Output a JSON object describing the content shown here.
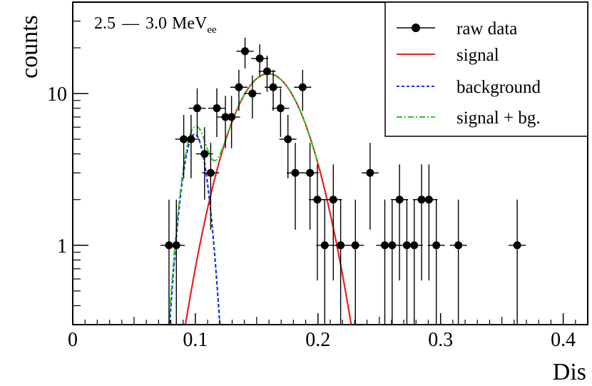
{
  "chart_data": {
    "type": "scatter",
    "energy_range": {
      "low": "2.5",
      "high": "3.0",
      "unit": "MeV",
      "unit_subscript": "ee"
    },
    "xlabel": "Dis",
    "ylabel": "counts",
    "xlim": [
      0,
      0.42
    ],
    "ylim": [
      0.3,
      40
    ],
    "y_scale": "log",
    "x_ticks": [
      0,
      0.1,
      0.2,
      0.3,
      0.4
    ],
    "x_tick_labels": [
      "0",
      "0.1",
      "0.2",
      "0.3",
      "0.4"
    ],
    "y_ticks": [
      1,
      10
    ],
    "y_tick_labels": [
      "1",
      "10"
    ],
    "grid": false,
    "legend_position": "top-right",
    "legend": [
      {
        "key": "raw",
        "label": "raw data"
      },
      {
        "key": "signal",
        "label": "signal"
      },
      {
        "key": "background",
        "label": "background"
      },
      {
        "key": "sum",
        "label": "signal + bg."
      }
    ],
    "colors": {
      "raw": "#000000",
      "signal": "#e8201e",
      "background": "#1a2fd6",
      "sum": "#22cc22"
    },
    "raw_data": {
      "x": [
        0.0785,
        0.0845,
        0.0905,
        0.0965,
        0.1015,
        0.1075,
        0.1125,
        0.1175,
        0.1245,
        0.1295,
        0.1355,
        0.1405,
        0.1465,
        0.1525,
        0.1585,
        0.1635,
        0.1695,
        0.1755,
        0.1815,
        0.1875,
        0.1935,
        0.1995,
        0.2055,
        0.2125,
        0.2185,
        0.2305,
        0.2425,
        0.2545,
        0.2605,
        0.2665,
        0.2725,
        0.2785,
        0.2845,
        0.2905,
        0.2965,
        0.3145,
        0.3625
      ],
      "y": [
        1,
        1,
        5,
        5,
        8,
        4,
        3,
        8,
        7,
        7,
        11,
        19,
        10,
        17,
        14,
        11,
        8,
        5,
        3,
        11,
        3,
        2,
        1,
        2,
        1,
        1,
        3,
        1,
        1,
        2,
        1,
        1,
        2,
        2,
        1,
        1,
        1
      ]
    },
    "signal": {
      "amplitude": 13.5,
      "mean": 0.1595,
      "sigma": 0.0245,
      "x_range": [
        0.078,
        0.236
      ]
    },
    "background": {
      "amplitude": 5.4,
      "mean": 0.0995,
      "sigma": 0.0085,
      "x_range": [
        0.0755,
        0.123
      ]
    },
    "sum": {
      "x_range": [
        0.0755,
        0.2
      ]
    }
  }
}
